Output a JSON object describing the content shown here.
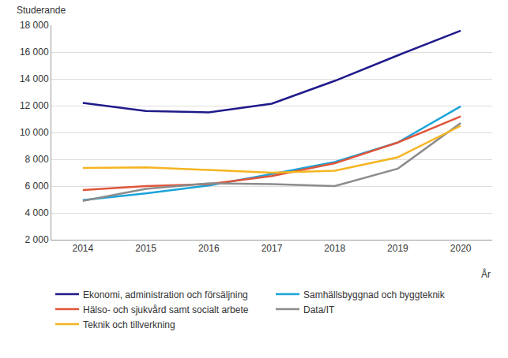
{
  "chart_data": {
    "type": "line",
    "y_label": "Studerande",
    "x_label": "År",
    "categories": [
      "2014",
      "2015",
      "2016",
      "2017",
      "2018",
      "2019",
      "2020"
    ],
    "series": [
      {
        "name": "Ekonomi, administration och försäljning",
        "color": "#1f1a8a",
        "values": [
          12200,
          11600,
          11500,
          12150,
          13850,
          15750,
          17600
        ]
      },
      {
        "name": "Samhällsbyggnad och byggteknik",
        "color": "#1ba4d9",
        "values": [
          4950,
          5450,
          6050,
          6900,
          7800,
          9250,
          11950
        ]
      },
      {
        "name": "Hälso- och sjukvård samt socialt arbete",
        "color": "#e0553a",
        "values": [
          5700,
          6000,
          6150,
          6750,
          7700,
          9250,
          11200
        ]
      },
      {
        "name": "Data/IT",
        "color": "#8c8c8c",
        "values": [
          4900,
          5800,
          6200,
          6150,
          6000,
          7300,
          10700
        ]
      },
      {
        "name": "Teknik och tillverkning",
        "color": "#f5b521",
        "values": [
          7350,
          7400,
          7200,
          7000,
          7150,
          8150,
          10500
        ]
      }
    ],
    "ylim": [
      2000,
      18000
    ],
    "yticks": [
      {
        "value": 2000,
        "label": "2 000"
      },
      {
        "value": 4000,
        "label": "4 000"
      },
      {
        "value": 6000,
        "label": "6 000"
      },
      {
        "value": 8000,
        "label": "8 000"
      },
      {
        "value": 10000,
        "label": "10 000"
      },
      {
        "value": 12000,
        "label": "12 000"
      },
      {
        "value": 14000,
        "label": "14 000"
      },
      {
        "value": 16000,
        "label": "16 000"
      },
      {
        "value": 18000,
        "label": "18 000"
      }
    ],
    "grid": true,
    "legend": "bottom"
  }
}
